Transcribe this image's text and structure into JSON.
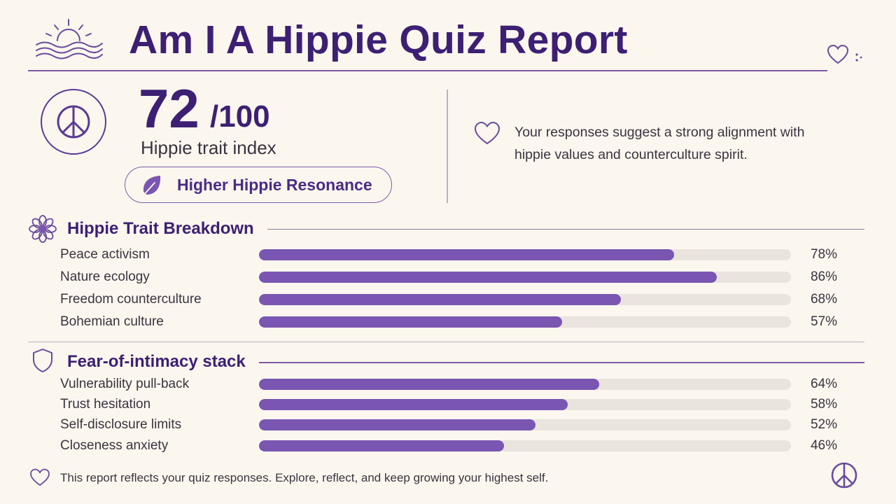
{
  "header": {
    "title": "Am I A Hippie Quiz Report",
    "logo_icon": "sun-over-waves-icon",
    "corner_icon": "heart-icon"
  },
  "score": {
    "value": "72",
    "max": "/100",
    "label": "Hippie trait index",
    "badge_icon": "peace-sign-icon",
    "resonance": {
      "label": "Higher Hippie Resonance",
      "icon": "leaf-icon"
    }
  },
  "message": {
    "icon": "heart-icon",
    "text": "Your responses suggest a strong alignment with hippie values and counterculture spirit."
  },
  "sections": [
    {
      "title": "Hippie Trait Breakdown",
      "icon": "flower-icon",
      "traits": [
        {
          "label": "Peace activism",
          "percent": 78,
          "display": "78%"
        },
        {
          "label": "Nature ecology",
          "percent": 86,
          "display": "86%"
        },
        {
          "label": "Freedom counterculture",
          "percent": 68,
          "display": "68%"
        },
        {
          "label": "Bohemian culture",
          "percent": 57,
          "display": "57%"
        }
      ]
    },
    {
      "title": "Fear-of-intimacy stack",
      "icon": "shield-icon",
      "traits": [
        {
          "label": "Vulnerability pull-back",
          "percent": 64,
          "display": "64%"
        },
        {
          "label": "Trust hesitation",
          "percent": 58,
          "display": "58%"
        },
        {
          "label": "Self-disclosure limits",
          "percent": 52,
          "display": "52%"
        },
        {
          "label": "Closeness anxiety",
          "percent": 46,
          "display": "46%"
        }
      ]
    }
  ],
  "footer": {
    "text": "This report reflects your quiz responses. Explore, reflect, and keep growing your highest self.",
    "left_icon": "heart-icon",
    "right_icon": "peace-sign-icon"
  },
  "colors": {
    "accent": "#7a55b1",
    "title": "#3d1f74",
    "bar_track": "#e9e4dd",
    "background": "#fbf7ef"
  }
}
